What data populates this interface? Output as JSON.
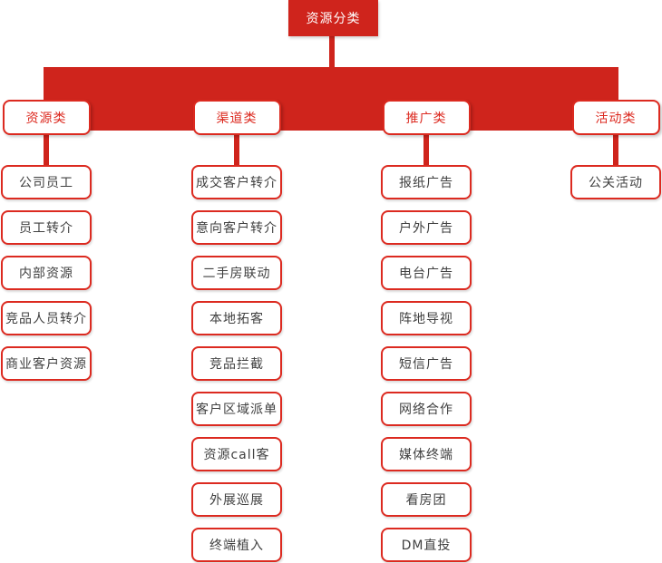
{
  "colors": {
    "fill_red": "#cf241c",
    "border_red": "#dc2a20",
    "child_text": "#404040",
    "node_bg": "#ffffff"
  },
  "root": {
    "label": "资源分类"
  },
  "categories": [
    {
      "label": "资源类",
      "children": [
        "公司员工",
        "员工转介",
        "内部资源",
        "竞品人员转介",
        "商业客户资源"
      ]
    },
    {
      "label": "渠道类",
      "children": [
        "成交客户转介",
        "意向客户转介",
        "二手房联动",
        "本地拓客",
        "竞品拦截",
        "客户区域派单",
        "资源call客",
        "外展巡展",
        "终端植入"
      ]
    },
    {
      "label": "推广类",
      "children": [
        "报纸广告",
        "户外广告",
        "电台广告",
        "阵地导视",
        "短信广告",
        "网络合作",
        "媒体终端",
        "看房团",
        "DM直投"
      ]
    },
    {
      "label": "活动类",
      "children": [
        "公关活动"
      ]
    }
  ]
}
